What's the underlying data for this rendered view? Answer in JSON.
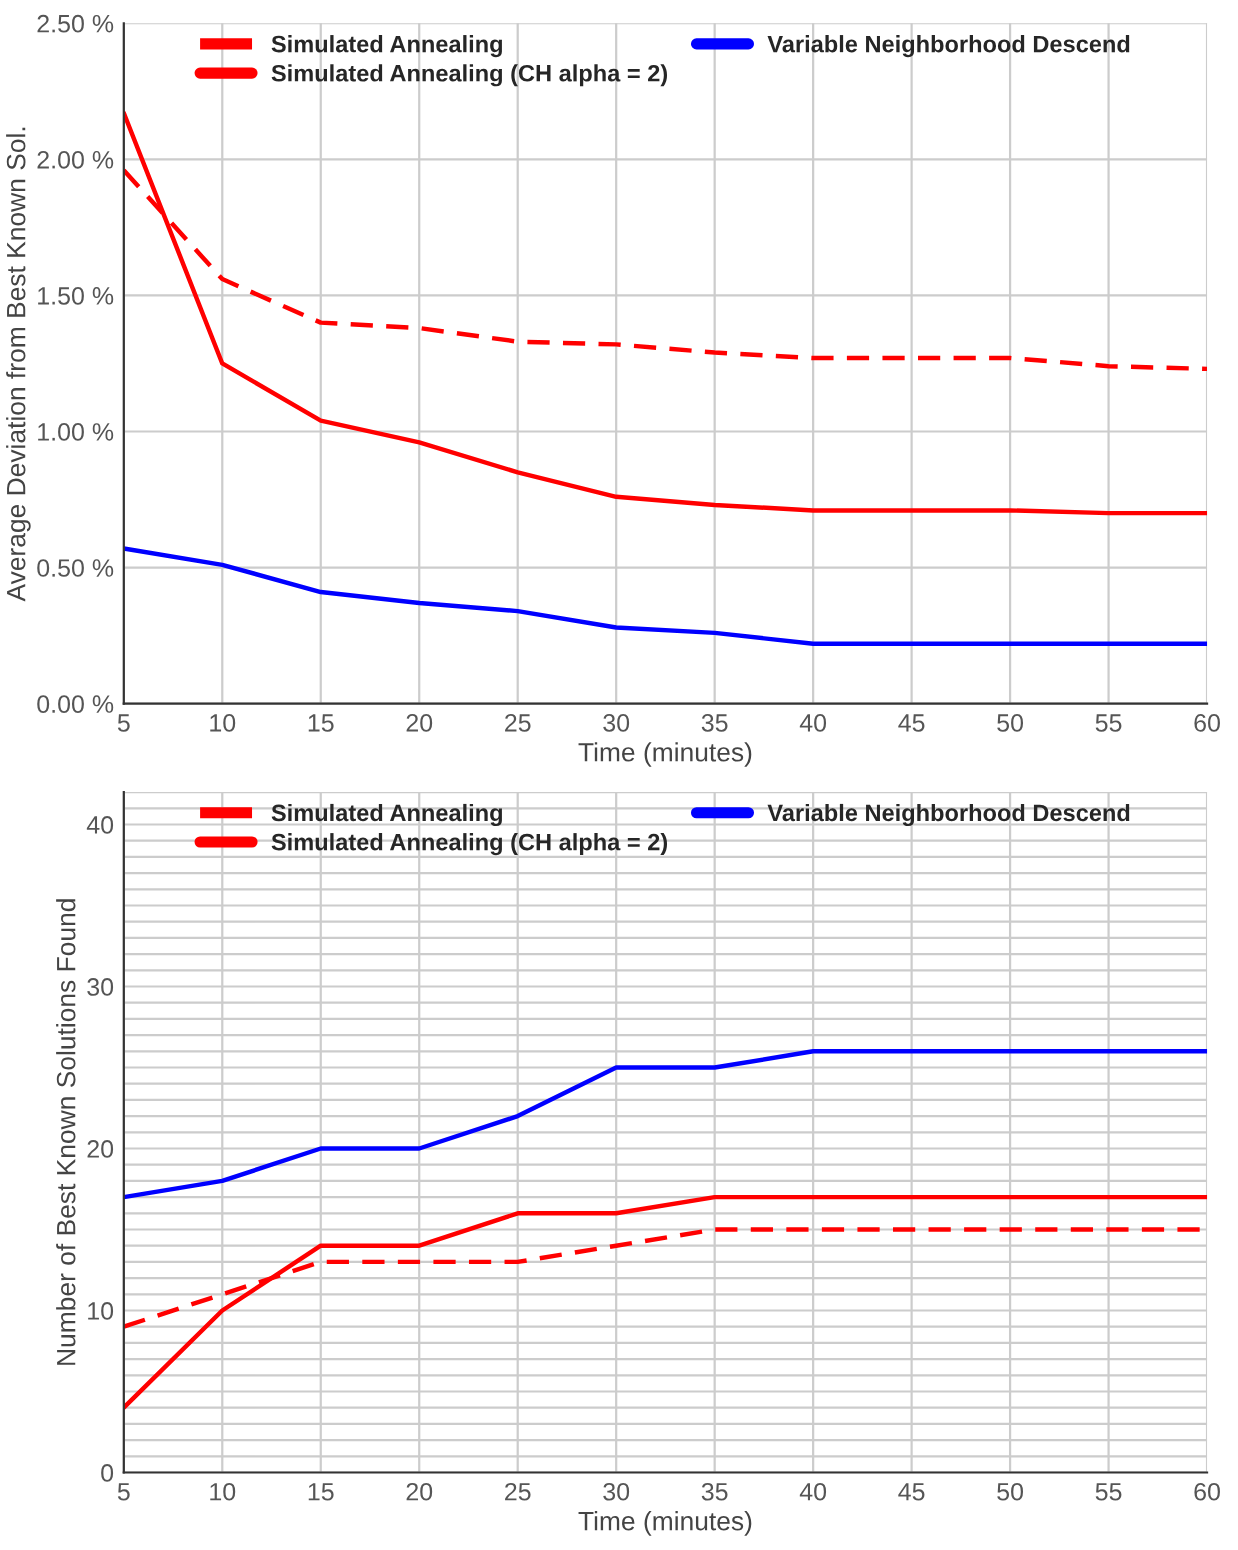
{
  "chart_data": [
    {
      "type": "line",
      "x": [
        5,
        10,
        15,
        20,
        25,
        30,
        35,
        40,
        45,
        50,
        55,
        60
      ],
      "xlabel": "Time (minutes)",
      "ylabel": "Average Deviation from Best Known Sol.",
      "xlim": [
        5,
        60
      ],
      "xticks": [
        5,
        10,
        15,
        20,
        25,
        30,
        35,
        40,
        45,
        50,
        55,
        60
      ],
      "ylim": [
        0,
        2.5
      ],
      "yticks": [
        {
          "value": 0,
          "label": "0.00 %"
        },
        {
          "value": 0.5,
          "label": "0.50 %"
        },
        {
          "value": 1,
          "label": "1.00 %"
        },
        {
          "value": 1.5,
          "label": "1.50 %"
        },
        {
          "value": 2,
          "label": "2.00 %"
        },
        {
          "value": 2.5,
          "label": "2.50 %"
        }
      ],
      "grid": true,
      "legend": "top",
      "series": [
        {
          "name": "Simulated Annealing",
          "color": "#ff0000",
          "line_style": "dashed",
          "values": [
            1.96,
            1.56,
            1.4,
            1.38,
            1.33,
            1.32,
            1.29,
            1.27,
            1.27,
            1.27,
            1.24,
            1.23
          ]
        },
        {
          "name": "Simulated Annealing (CH alpha = 2)",
          "color": "#ff0000",
          "line_style": "solid",
          "values": [
            2.17,
            1.25,
            1.04,
            0.96,
            0.85,
            0.76,
            0.73,
            0.71,
            0.71,
            0.71,
            0.7,
            0.7
          ]
        },
        {
          "name": "Variable Neighborhood Descend",
          "color": "#0000ff",
          "line_style": "solid",
          "values": [
            0.57,
            0.51,
            0.41,
            0.37,
            0.34,
            0.28,
            0.26,
            0.22,
            0.22,
            0.22,
            0.22,
            0.22
          ]
        }
      ]
    },
    {
      "type": "line",
      "x": [
        5,
        10,
        15,
        20,
        25,
        30,
        35,
        40,
        45,
        50,
        55,
        60
      ],
      "xlabel": "Time (minutes)",
      "ylabel": "Number of Best Known Solutions Found",
      "xlim": [
        5,
        60
      ],
      "xticks": [
        5,
        10,
        15,
        20,
        25,
        30,
        35,
        40,
        45,
        50,
        55,
        60
      ],
      "ylim": [
        0,
        42
      ],
      "yticks": [
        0,
        {
          "value": 1,
          "label": null
        },
        {
          "value": 2,
          "label": null
        },
        {
          "value": 3,
          "label": null
        },
        {
          "value": 4,
          "label": null
        },
        {
          "value": 5,
          "label": null
        },
        {
          "value": 6,
          "label": null
        },
        {
          "value": 7,
          "label": null
        },
        {
          "value": 8,
          "label": null
        },
        {
          "value": 9,
          "label": null
        },
        10,
        {
          "value": 11,
          "label": null
        },
        {
          "value": 12,
          "label": null
        },
        {
          "value": 13,
          "label": null
        },
        {
          "value": 14,
          "label": null
        },
        {
          "value": 15,
          "label": null
        },
        {
          "value": 16,
          "label": null
        },
        {
          "value": 17,
          "label": null
        },
        {
          "value": 18,
          "label": null
        },
        {
          "value": 19,
          "label": null
        },
        20,
        {
          "value": 21,
          "label": null
        },
        {
          "value": 22,
          "label": null
        },
        {
          "value": 23,
          "label": null
        },
        {
          "value": 24,
          "label": null
        },
        {
          "value": 25,
          "label": null
        },
        {
          "value": 26,
          "label": null
        },
        {
          "value": 27,
          "label": null
        },
        {
          "value": 28,
          "label": null
        },
        {
          "value": 29,
          "label": null
        },
        30,
        {
          "value": 31,
          "label": null
        },
        {
          "value": 32,
          "label": null
        },
        {
          "value": 33,
          "label": null
        },
        {
          "value": 34,
          "label": null
        },
        {
          "value": 35,
          "label": null
        },
        {
          "value": 36,
          "label": null
        },
        {
          "value": 37,
          "label": null
        },
        {
          "value": 38,
          "label": null
        },
        {
          "value": 39,
          "label": null
        },
        40,
        {
          "value": 41,
          "label": null
        },
        {
          "value": 42,
          "label": null
        }
      ],
      "grid": true,
      "legend": "top",
      "series": [
        {
          "name": "Simulated Annealing",
          "color": "#ff0000",
          "line_style": "dashed",
          "values": [
            9,
            11,
            13,
            13,
            13,
            14,
            15,
            15,
            15,
            15,
            15,
            15
          ]
        },
        {
          "name": "Simulated Annealing (CH alpha = 2)",
          "color": "#ff0000",
          "line_style": "solid",
          "values": [
            4,
            10,
            14,
            14,
            16,
            16,
            17,
            17,
            17,
            17,
            17,
            17
          ]
        },
        {
          "name": "Variable Neighborhood Descend",
          "color": "#0000ff",
          "line_style": "solid",
          "values": [
            17,
            18,
            20,
            20,
            22,
            25,
            25,
            26,
            26,
            26,
            26,
            26
          ]
        }
      ]
    }
  ]
}
